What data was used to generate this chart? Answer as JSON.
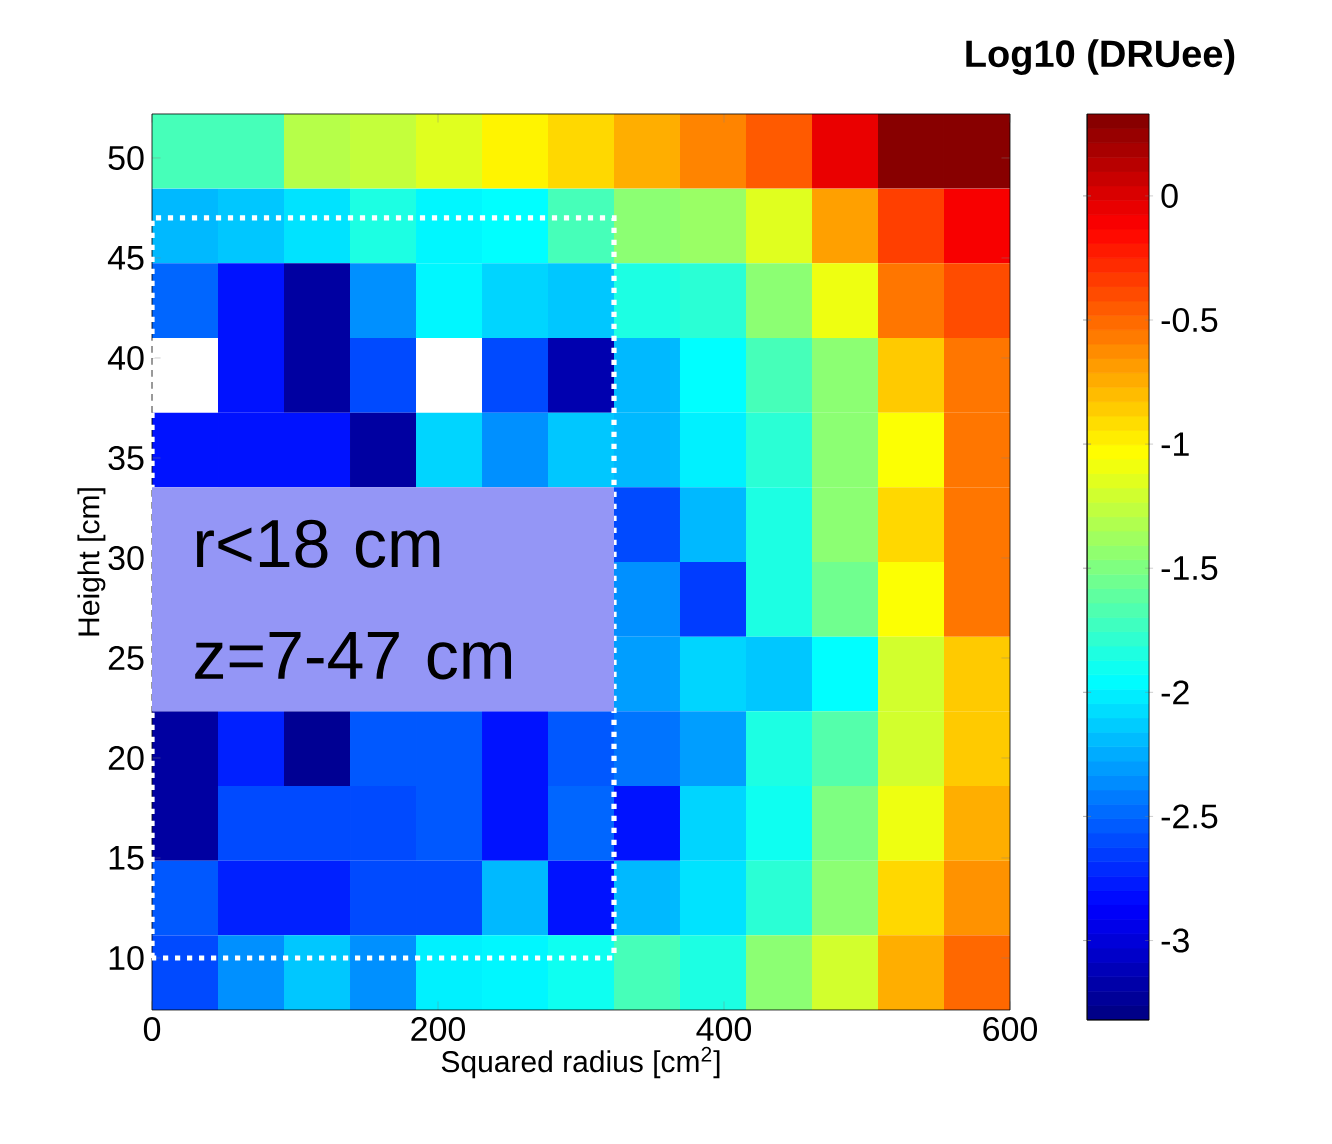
{
  "chart_data": {
    "type": "heatmap",
    "xlabel": "Squared radius [cm$^{2}$]",
    "ylabel": "Height [cm]",
    "clabel": "Log10 (DRUee)",
    "annotations": [
      "r<18 cm",
      "z=7-47 cm"
    ],
    "x": [
      23.08,
      69.23,
      115.38,
      161.54,
      207.69,
      253.85,
      300,
      346.15,
      392.31,
      438.46,
      484.62,
      530.77,
      576.92
    ],
    "xlim": [
      0,
      600
    ],
    "ylim": [
      7.4,
      52.2
    ],
    "xticks": [
      0,
      200,
      400,
      600
    ],
    "yticks": [
      10,
      15,
      20,
      25,
      30,
      35,
      40,
      45,
      50
    ],
    "clim": [
      -3.32,
      0.33
    ],
    "cticks": [
      -3,
      -2.5,
      -2,
      -1.5,
      -1,
      -0.5,
      0
    ],
    "cells": [
      [
        -1.7,
        -1.7,
        -1.3,
        -1.25,
        -1.15,
        -1.0,
        -0.9,
        -0.75,
        -0.6,
        -0.45,
        -0.05,
        0.3,
        0.3
      ],
      [
        -2.2,
        -2.15,
        -2.05,
        -1.85,
        -1.98,
        -1.95,
        -1.7,
        -1.45,
        -1.4,
        -1.15,
        -0.7,
        -0.35,
        -0.1
      ],
      [
        -2.5,
        -2.8,
        -3.2,
        -2.35,
        -1.98,
        -2.1,
        -2.15,
        -1.85,
        -1.8,
        -1.45,
        -1.1,
        -0.55,
        -0.4
      ],
      [
        null,
        -2.8,
        -3.2,
        -2.6,
        null,
        -2.6,
        -3.15,
        -2.2,
        -1.95,
        -1.7,
        -1.45,
        -0.85,
        -0.55
      ],
      [
        -2.8,
        -2.8,
        -2.8,
        -3.2,
        -2.1,
        -2.35,
        -2.15,
        -2.2,
        -2.0,
        -1.8,
        -1.45,
        -1.05,
        -0.55
      ],
      [
        null,
        null,
        null,
        null,
        null,
        null,
        null,
        -2.6,
        -2.2,
        -1.85,
        -1.45,
        -0.9,
        -0.55
      ],
      [
        null,
        null,
        null,
        null,
        null,
        null,
        null,
        -2.35,
        -2.65,
        -1.85,
        -1.55,
        -1.05,
        -0.55
      ],
      [
        null,
        null,
        null,
        null,
        null,
        null,
        null,
        -2.3,
        -2.1,
        -2.15,
        -1.95,
        -1.2,
        -0.85
      ],
      [
        -3.2,
        -2.75,
        -3.25,
        -2.55,
        -2.55,
        -2.8,
        -2.55,
        -2.45,
        -2.3,
        -1.85,
        -1.65,
        -1.2,
        -0.85
      ],
      [
        -3.2,
        -2.6,
        -2.6,
        -2.6,
        -2.55,
        -2.8,
        -2.5,
        -2.8,
        -2.1,
        -1.9,
        -1.5,
        -1.1,
        -0.75
      ],
      [
        -2.55,
        -2.75,
        -2.75,
        -2.6,
        -2.6,
        -2.2,
        -2.8,
        -2.2,
        -2.05,
        -1.8,
        -1.45,
        -0.9,
        -0.65
      ],
      [
        -2.6,
        -2.35,
        -2.15,
        -2.35,
        -2.0,
        -1.98,
        -1.9,
        -1.7,
        -1.85,
        -1.45,
        -1.2,
        -0.75,
        -0.5
      ]
    ]
  }
}
